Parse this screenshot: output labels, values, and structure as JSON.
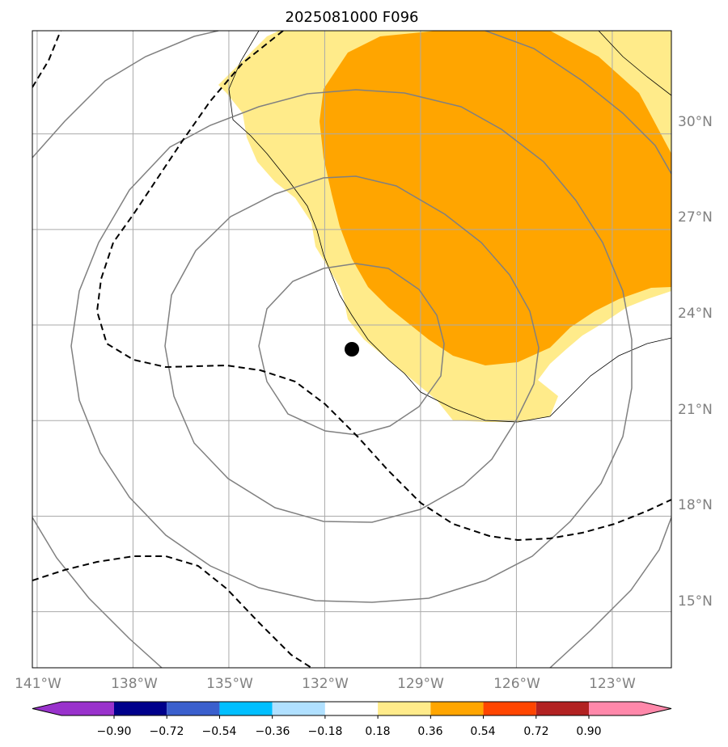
{
  "title": "2025081000 F096",
  "map": {
    "lon_labels": [
      "141°W",
      "138°W",
      "135°W",
      "132°W",
      "129°W",
      "126°W",
      "123°W"
    ],
    "lat_labels": [
      "30°N",
      "27°N",
      "24°N",
      "21°N",
      "18°N",
      "15°N"
    ],
    "lon_range": [
      -141,
      -121
    ],
    "lat_range": [
      13,
      33
    ],
    "gridline_color": "#aaaaaa",
    "storm_center": {
      "lon": -131.1,
      "lat": 22.9
    },
    "contour_color": "#808080",
    "dashed_contour_color": "#000000",
    "coastline_color": "#000000"
  },
  "colorbar": {
    "tick_labels": [
      "−0.90",
      "−0.72",
      "−0.54",
      "−0.36",
      "−0.18",
      "0.18",
      "0.36",
      "0.54",
      "0.72",
      "0.90"
    ],
    "bins": [
      {
        "range": "< -0.90",
        "color": "#9932cc"
      },
      {
        "range": "-0.90 to -0.72",
        "color": "#00008b"
      },
      {
        "range": "-0.72 to -0.54",
        "color": "#3a5fcd"
      },
      {
        "range": "-0.54 to -0.36",
        "color": "#00bfff"
      },
      {
        "range": "-0.36 to -0.18",
        "color": "#b0e0ff"
      },
      {
        "range": "-0.18 to 0.18",
        "color": "#ffffff"
      },
      {
        "range": "0.18 to 0.36",
        "color": "#ffeb8a"
      },
      {
        "range": "0.36 to 0.54",
        "color": "#ffa500"
      },
      {
        "range": "0.54 to 0.72",
        "color": "#ff4500"
      },
      {
        "range": "0.72 to 0.90",
        "color": "#b22222"
      },
      {
        "range": "> 0.90",
        "color": "#ff88aa"
      }
    ]
  },
  "fill_colors": {
    "light": "#ffeb8a",
    "orange": "#ffa500"
  }
}
